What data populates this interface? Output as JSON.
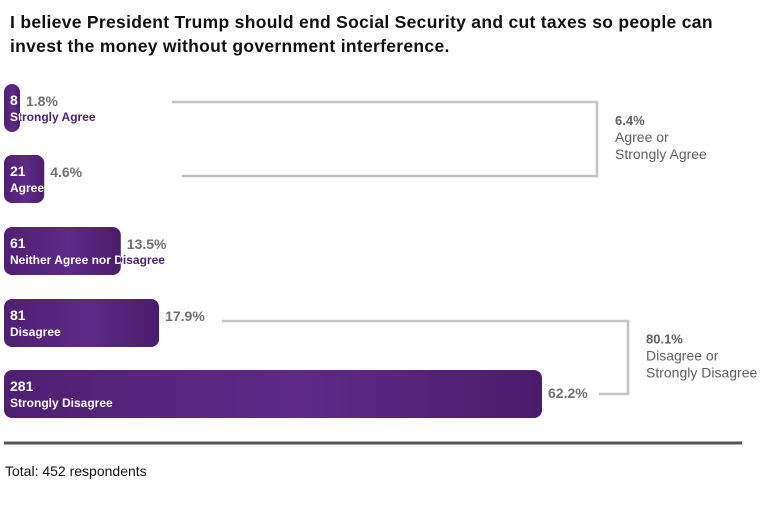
{
  "chart_data": {
    "type": "bar",
    "orientation": "horizontal",
    "title": "I believe President Trump should end Social Security and cut taxes so people can invest the money without government interference.",
    "categories": [
      "Strongly Agree",
      "Agree",
      "Neither Agree nor Disagree",
      "Disagree",
      "Strongly Disagree"
    ],
    "values": [
      8,
      21,
      61,
      81,
      281
    ],
    "value_labels": [
      "8",
      "21",
      "61",
      "81",
      "281"
    ],
    "percents": [
      "1.8%",
      "4.6%",
      "13.5%",
      "17.9%",
      "62.2%"
    ],
    "groups": [
      {
        "percent": "6.4%",
        "line1": "Agree or",
        "line2": "Strongly Agree",
        "from": 0,
        "to": 1
      },
      {
        "percent": "80.1%",
        "line1": "Disagree or",
        "line2": "Strongly Disagree",
        "from": 3,
        "to": 4
      }
    ],
    "total": "Total: 452 respondents",
    "colors": {
      "bar_start": "#4e1f73",
      "bar_mid": "#5e2a86",
      "bar_end": "#4a1c6c",
      "outside_label": "#4e1f73",
      "bracket": "#c4c4c4",
      "baseline": "#555555"
    }
  }
}
